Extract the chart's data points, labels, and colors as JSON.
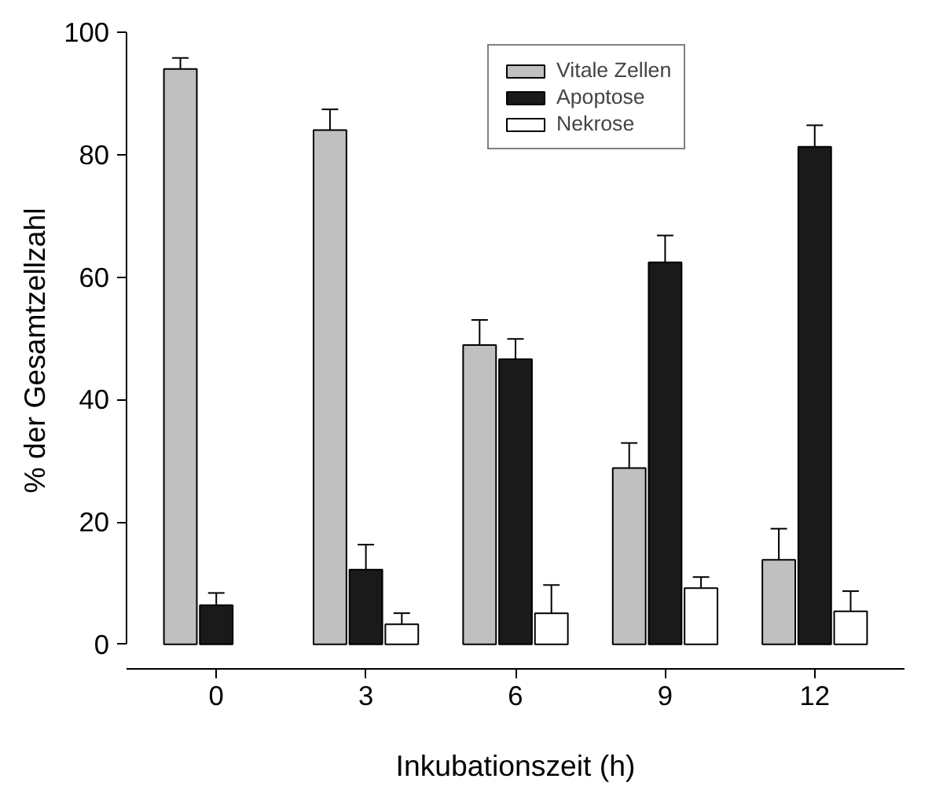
{
  "chart_data": {
    "type": "bar",
    "xlabel": "Inkubationszeit (h)",
    "ylabel": "% der Gesamtzellzahl",
    "categories": [
      "0",
      "3",
      "6",
      "9",
      "12"
    ],
    "series": [
      {
        "name": "Vitale Zellen",
        "color": "#c0c0c0",
        "values": [
          94,
          84,
          48.9,
          28.8,
          13.8
        ],
        "errors": [
          [
            94,
            95.8
          ],
          [
            84,
            87.4
          ],
          [
            48.9,
            53
          ],
          [
            28.8,
            32.9
          ],
          [
            13.8,
            18.9
          ]
        ]
      },
      {
        "name": "Apoptose",
        "color": "#1a1a1a",
        "values": [
          6.4,
          12.2,
          46.6,
          62.4,
          81.3
        ],
        "errors": [
          [
            6.4,
            8.4
          ],
          [
            12.2,
            16.3
          ],
          [
            46.6,
            49.9
          ],
          [
            62.4,
            66.8
          ],
          [
            81.3,
            84.8
          ]
        ]
      },
      {
        "name": "Nekrose",
        "color": "#ffffff",
        "values": [
          null,
          3.3,
          5.1,
          9.2,
          5.4
        ],
        "errors": [
          null,
          [
            3.3,
            5.1
          ],
          [
            5.1,
            9.7
          ],
          [
            9.2,
            11
          ],
          [
            5.4,
            8.7
          ]
        ]
      }
    ],
    "ylim": [
      -4,
      100
    ],
    "yticks": [
      0,
      20,
      40,
      60,
      80,
      100
    ],
    "grid": false,
    "legend": "top right"
  }
}
